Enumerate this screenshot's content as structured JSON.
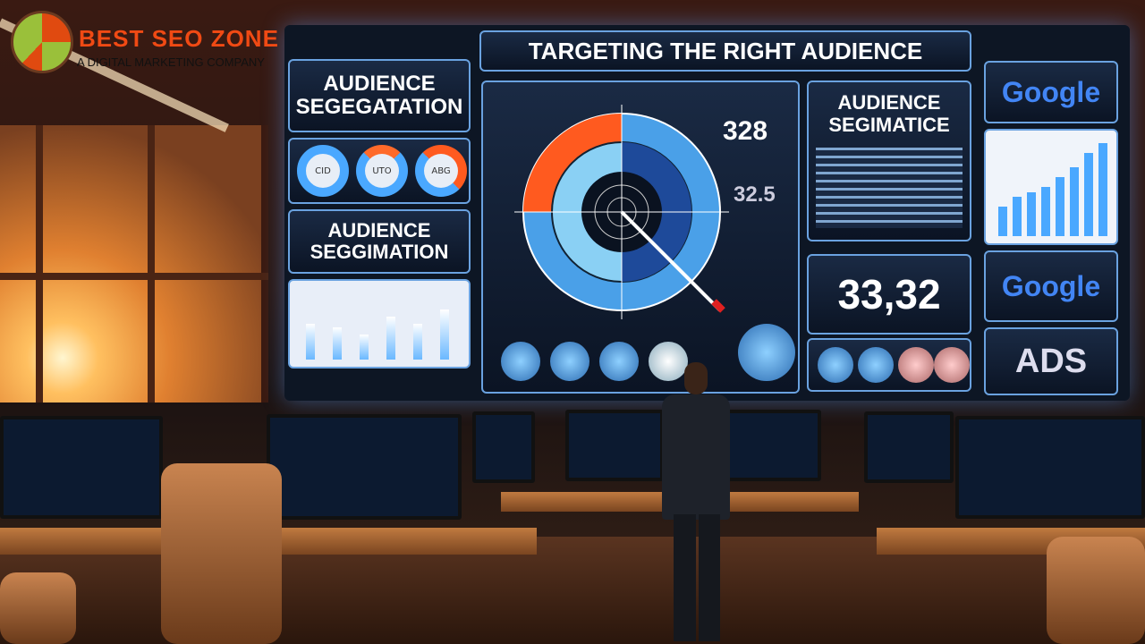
{
  "logo": {
    "brand": "BEST SEO ZONE",
    "tagline": "A DIGITAL MARKETING COMPANY"
  },
  "title": "TARGETING THE RIGHT AUDIENCE",
  "left_panels": {
    "heading_1": "AUDIENCE SEGEGATATION",
    "heading_2": "AUDIENCE SEGGIMATION",
    "donut_labels": [
      "CID",
      "UTO",
      "ABG"
    ]
  },
  "center": {
    "metric_1": "328",
    "metric_2": "32.5",
    "heading": "AUDIENCE SEGIMATICE",
    "big_number": "33,32"
  },
  "right": {
    "google_1": "Google",
    "google_2": "Google",
    "ads": "ADS"
  },
  "colors": {
    "accent_blue": "#4aa8ff",
    "accent_orange": "#ff5a1f",
    "screen_bg": "#0d1624"
  }
}
